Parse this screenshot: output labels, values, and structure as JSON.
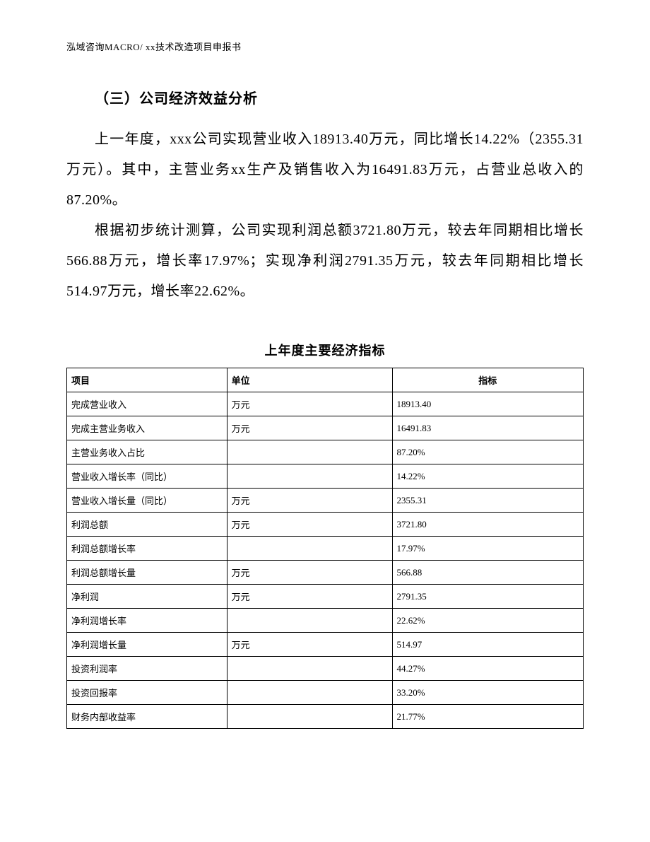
{
  "header": "泓域咨询MACRO/   xx技术改造项目申报书",
  "section_heading": "（三）公司经济效益分析",
  "paragraph1": "上一年度，xxx公司实现营业收入18913.40万元，同比增长14.22%（2355.31万元）。其中，主营业务xx生产及销售收入为16491.83万元，占营业总收入的87.20%。",
  "paragraph2": "根据初步统计测算，公司实现利润总额3721.80万元，较去年同期相比增长566.88万元，增长率17.97%；实现净利润2791.35万元，较去年同期相比增长514.97万元，增长率22.62%。",
  "table": {
    "title": "上年度主要经济指标",
    "columns": [
      "项目",
      "单位",
      "指标"
    ],
    "rows": [
      {
        "item": "完成营业收入",
        "unit": "万元",
        "value": "18913.40"
      },
      {
        "item": "完成主营业务收入",
        "unit": "万元",
        "value": "16491.83"
      },
      {
        "item": "主营业务收入占比",
        "unit": "",
        "value": "87.20%"
      },
      {
        "item": "营业收入增长率（同比）",
        "unit": "",
        "value": "14.22%"
      },
      {
        "item": "营业收入增长量（同比）",
        "unit": "万元",
        "value": "2355.31"
      },
      {
        "item": "利润总额",
        "unit": "万元",
        "value": "3721.80"
      },
      {
        "item": "利润总额增长率",
        "unit": "",
        "value": "17.97%"
      },
      {
        "item": "利润总额增长量",
        "unit": "万元",
        "value": "566.88"
      },
      {
        "item": "净利润",
        "unit": "万元",
        "value": "2791.35"
      },
      {
        "item": "净利润增长率",
        "unit": "",
        "value": "22.62%"
      },
      {
        "item": "净利润增长量",
        "unit": "万元",
        "value": "514.97"
      },
      {
        "item": "投资利润率",
        "unit": "",
        "value": "44.27%"
      },
      {
        "item": "投资回报率",
        "unit": "",
        "value": "33.20%"
      },
      {
        "item": "财务内部收益率",
        "unit": "",
        "value": "21.77%"
      }
    ]
  }
}
